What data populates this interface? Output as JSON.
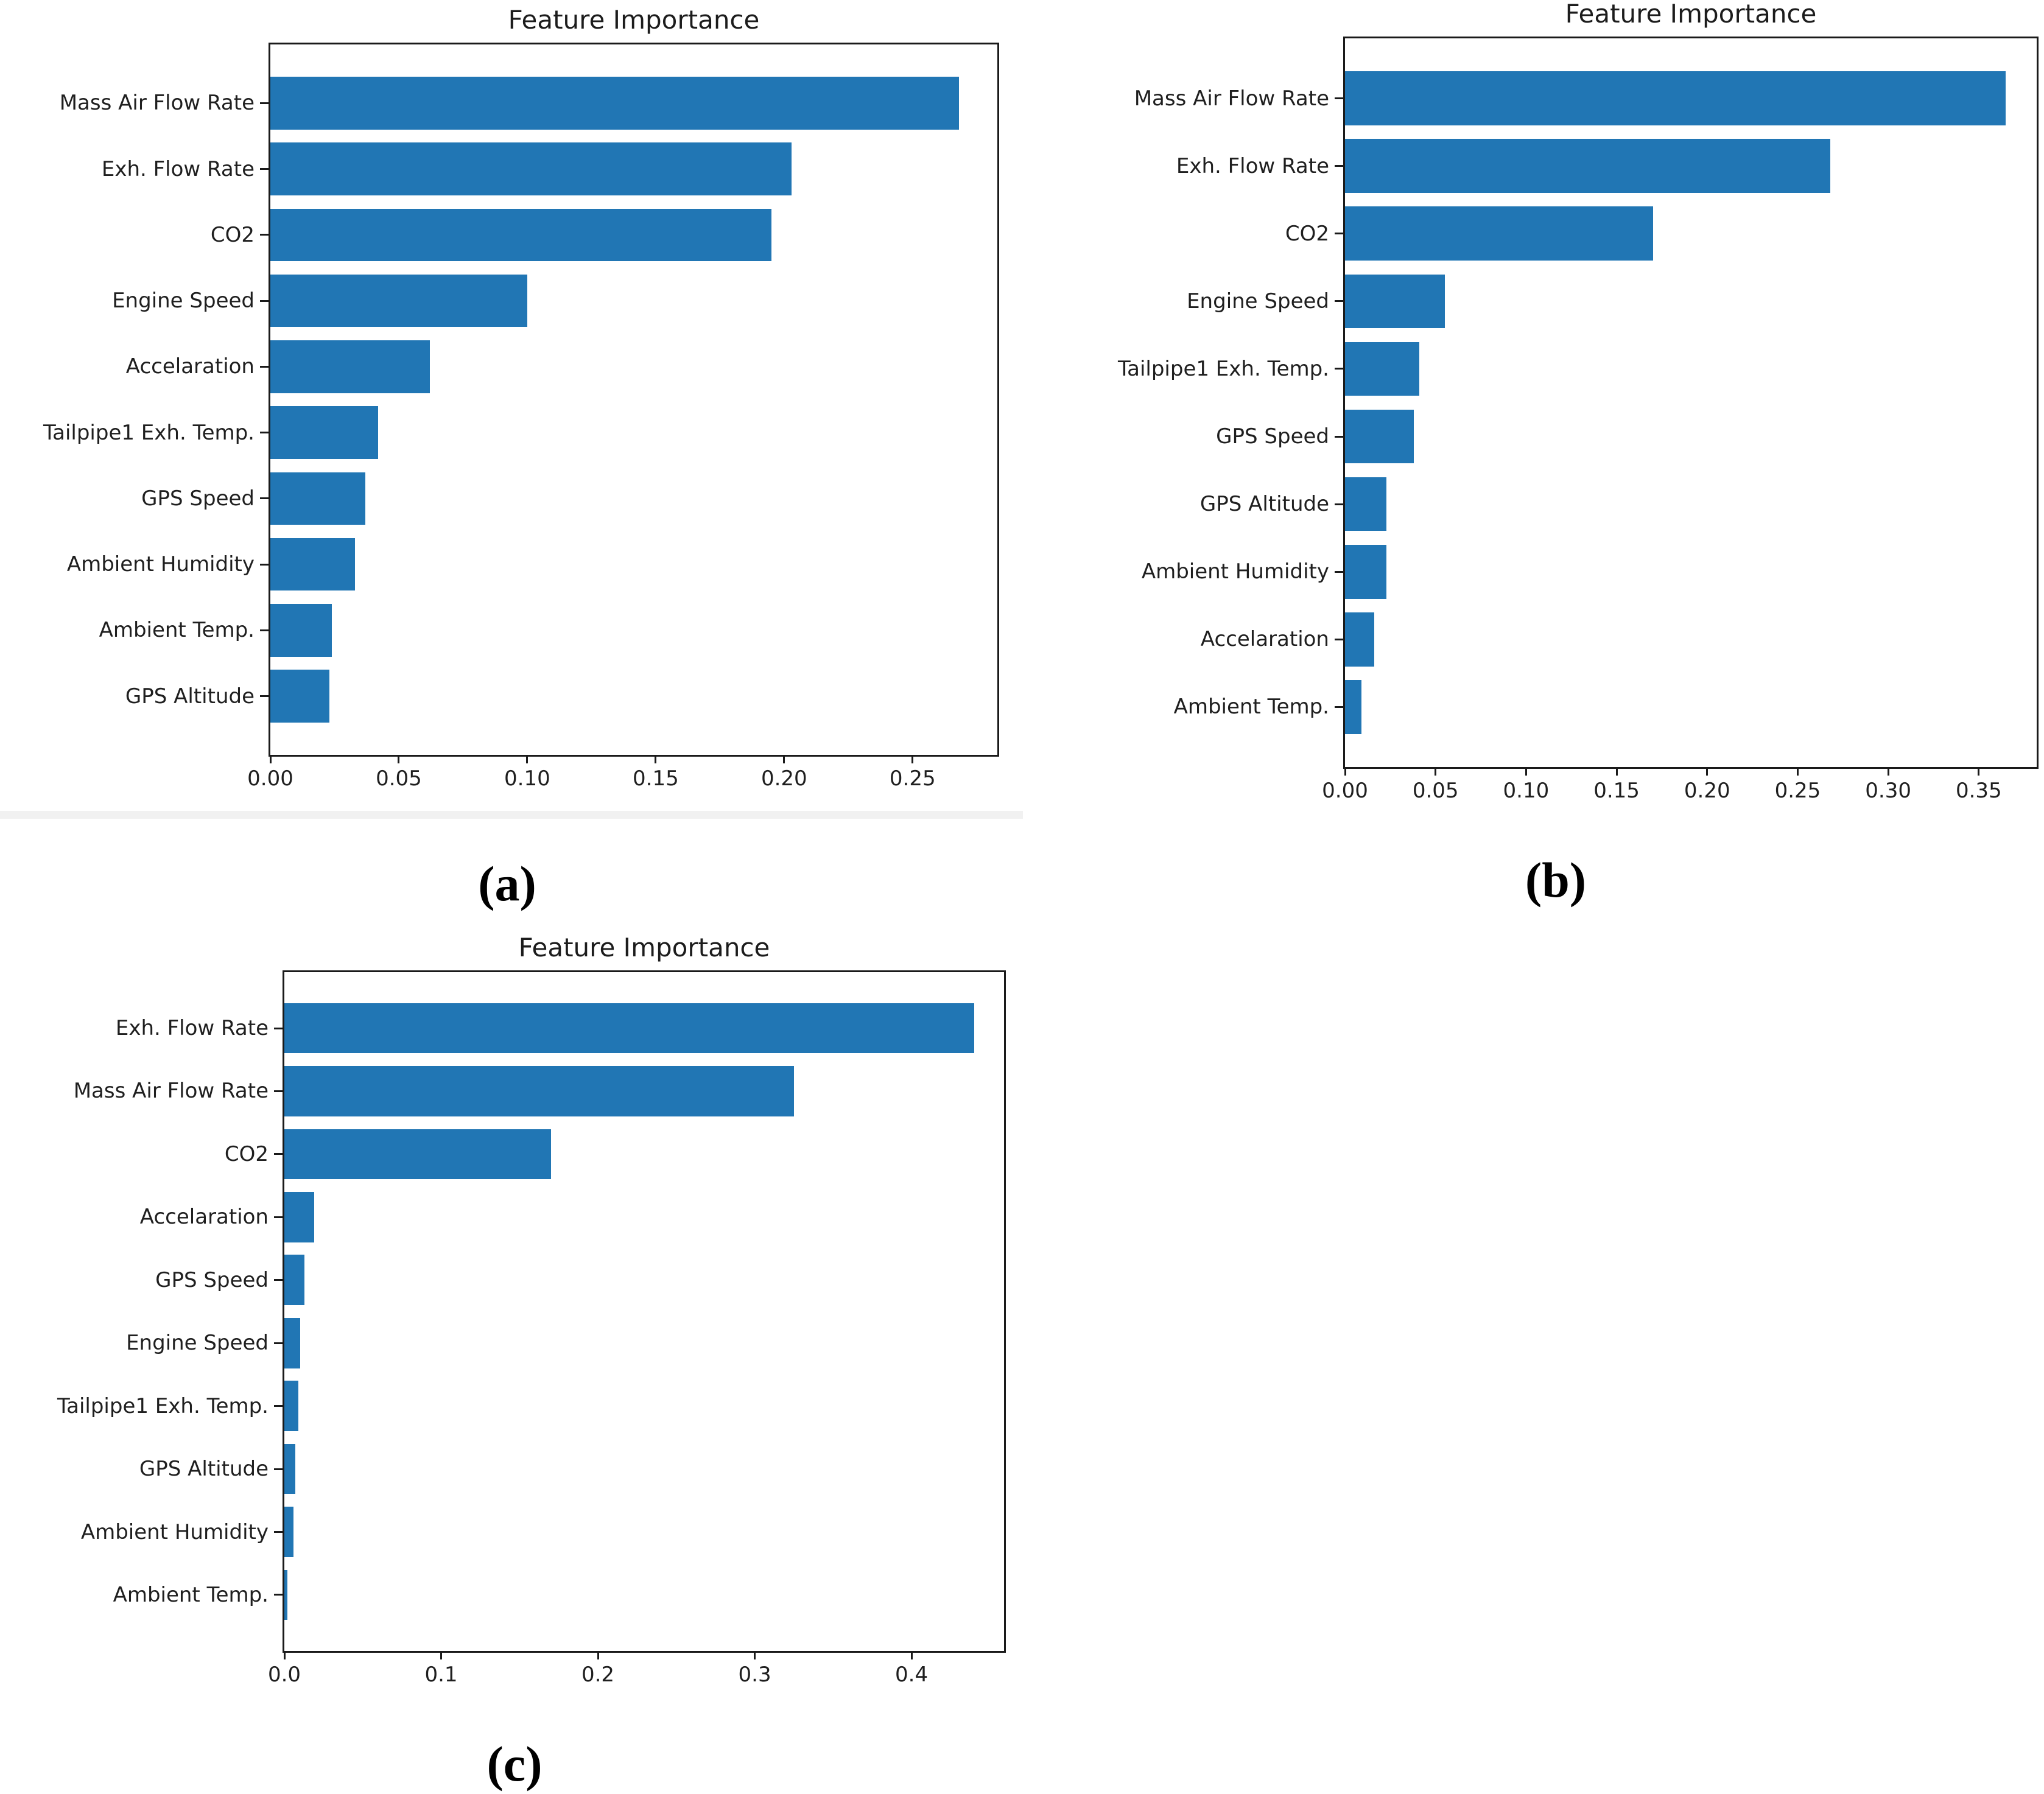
{
  "colors": {
    "bar": "#2176b4",
    "spine": "#1a1a1a",
    "text": "#1f1f1f",
    "artifact_band": "#f1f1f1"
  },
  "chart_data": [
    {
      "type": "bar",
      "orientation": "horizontal",
      "panel": "a",
      "caption": "(a)",
      "title": "Feature Importance",
      "categories": [
        "Mass Air Flow Rate",
        "Exh. Flow Rate",
        "CO2",
        "Engine Speed",
        "Accelaration",
        "Tailpipe1 Exh. Temp.",
        "GPS Speed",
        "Ambient Humidity",
        "Ambient Temp.",
        "GPS Altitude"
      ],
      "values": [
        0.268,
        0.203,
        0.195,
        0.1,
        0.062,
        0.042,
        0.037,
        0.033,
        0.024,
        0.023
      ],
      "xlabel": "",
      "ylabel": "",
      "xlim": [
        0,
        0.283
      ],
      "xticks": [
        0,
        0.05,
        0.1,
        0.15,
        0.2,
        0.25
      ],
      "xtick_labels": [
        "0.00",
        "0.05",
        "0.10",
        "0.15",
        "0.20",
        "0.25"
      ],
      "grid": false,
      "legend": false,
      "bar_color": "#2176b4"
    },
    {
      "type": "bar",
      "orientation": "horizontal",
      "panel": "b",
      "caption": "(b)",
      "title": "Feature Importance",
      "categories": [
        "Mass Air Flow Rate",
        "Exh. Flow Rate",
        "CO2",
        "Engine Speed",
        "Tailpipe1 Exh. Temp.",
        "GPS Speed",
        "GPS Altitude",
        "Ambient Humidity",
        "Accelaration",
        "Ambient Temp."
      ],
      "values": [
        0.365,
        0.268,
        0.17,
        0.055,
        0.041,
        0.038,
        0.023,
        0.023,
        0.016,
        0.009
      ],
      "xlabel": "",
      "ylabel": "",
      "xlim": [
        0,
        0.382
      ],
      "xticks": [
        0,
        0.05,
        0.1,
        0.15,
        0.2,
        0.25,
        0.3,
        0.35
      ],
      "xtick_labels": [
        "0.00",
        "0.05",
        "0.10",
        "0.15",
        "0.20",
        "0.25",
        "0.30",
        "0.35"
      ],
      "grid": false,
      "legend": false,
      "bar_color": "#2176b4"
    },
    {
      "type": "bar",
      "orientation": "horizontal",
      "panel": "c",
      "caption": "(c)",
      "title": "Feature Importance",
      "categories": [
        "Exh. Flow Rate",
        "Mass Air Flow Rate",
        "CO2",
        "Accelaration",
        "GPS Speed",
        "Engine Speed",
        "Tailpipe1 Exh. Temp.",
        "GPS Altitude",
        "Ambient Humidity",
        "Ambient Temp."
      ],
      "values": [
        0.44,
        0.325,
        0.17,
        0.019,
        0.013,
        0.01,
        0.009,
        0.007,
        0.006,
        0.002
      ],
      "xlabel": "",
      "ylabel": "",
      "xlim": [
        0,
        0.459
      ],
      "xticks": [
        0,
        0.1,
        0.2,
        0.3,
        0.4
      ],
      "xtick_labels": [
        "0.0",
        "0.1",
        "0.2",
        "0.3",
        "0.4"
      ],
      "grid": false,
      "legend": false,
      "bar_color": "#2176b4"
    }
  ]
}
